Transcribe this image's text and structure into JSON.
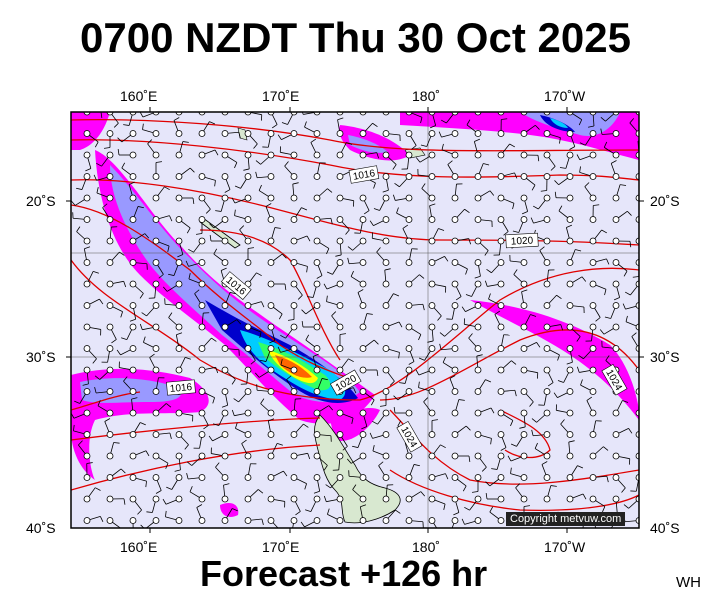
{
  "title": "0700 NZDT Thu 30 Oct 2025",
  "footer": "Forecast +126 hr",
  "region_code": "WH",
  "copyright": "Copyright metvuw.com",
  "axes": {
    "top": [
      "160˚E",
      "170˚E",
      "180˚",
      "170˚W"
    ],
    "bottom": [
      "160˚E",
      "170˚E",
      "180˚",
      "170˚W"
    ],
    "left": [
      "20˚S",
      "30˚S",
      "40˚S"
    ],
    "right": [
      "20˚S",
      "30˚S",
      "40˚S"
    ]
  },
  "isobar_labels": [
    "1016",
    "1020",
    "1016",
    "1016",
    "1020",
    "1024",
    "1024"
  ],
  "colors": {
    "background": "#e6e6fa",
    "isobar": "#e00000",
    "rain_light": "#ff00ff",
    "rain_moderate": "#9999ff",
    "rain_heavy": "#0000cc",
    "rain_very_heavy": "#00ccff",
    "rain_extreme": "#ffff00"
  }
}
